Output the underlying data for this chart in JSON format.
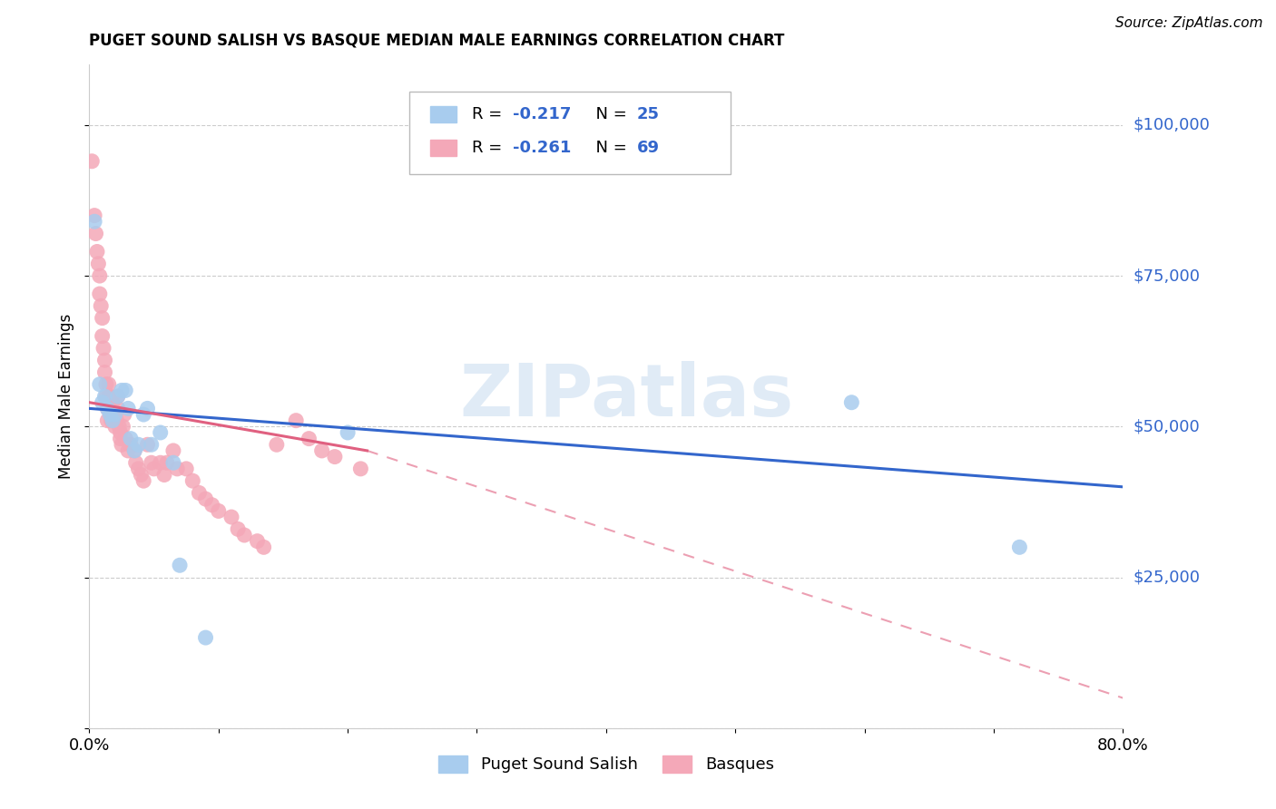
{
  "title": "PUGET SOUND SALISH VS BASQUE MEDIAN MALE EARNINGS CORRELATION CHART",
  "source": "Source: ZipAtlas.com",
  "ylabel": "Median Male Earnings",
  "xlim": [
    0.0,
    0.8
  ],
  "ylim": [
    0,
    110000
  ],
  "legend_blue_label": "Puget Sound Salish",
  "legend_pink_label": "Basques",
  "watermark": "ZIPatlas",
  "blue_color": "#A8CCEE",
  "pink_color": "#F4A8B8",
  "blue_line_color": "#3366CC",
  "pink_line_color": "#E06080",
  "blue_scatter": [
    [
      0.004,
      84000
    ],
    [
      0.008,
      57000
    ],
    [
      0.01,
      54000
    ],
    [
      0.012,
      55000
    ],
    [
      0.014,
      53000
    ],
    [
      0.016,
      52000
    ],
    [
      0.018,
      51000
    ],
    [
      0.02,
      52000
    ],
    [
      0.022,
      55000
    ],
    [
      0.025,
      56000
    ],
    [
      0.028,
      56000
    ],
    [
      0.03,
      53000
    ],
    [
      0.032,
      48000
    ],
    [
      0.035,
      46000
    ],
    [
      0.038,
      47000
    ],
    [
      0.042,
      52000
    ],
    [
      0.045,
      53000
    ],
    [
      0.048,
      47000
    ],
    [
      0.055,
      49000
    ],
    [
      0.065,
      44000
    ],
    [
      0.07,
      27000
    ],
    [
      0.09,
      15000
    ],
    [
      0.2,
      49000
    ],
    [
      0.59,
      54000
    ],
    [
      0.72,
      30000
    ]
  ],
  "pink_scatter": [
    [
      0.002,
      94000
    ],
    [
      0.004,
      85000
    ],
    [
      0.005,
      82000
    ],
    [
      0.006,
      79000
    ],
    [
      0.007,
      77000
    ],
    [
      0.008,
      75000
    ],
    [
      0.008,
      72000
    ],
    [
      0.009,
      70000
    ],
    [
      0.01,
      68000
    ],
    [
      0.01,
      65000
    ],
    [
      0.011,
      63000
    ],
    [
      0.012,
      61000
    ],
    [
      0.012,
      59000
    ],
    [
      0.013,
      57000
    ],
    [
      0.013,
      55000
    ],
    [
      0.014,
      53000
    ],
    [
      0.014,
      51000
    ],
    [
      0.015,
      55000
    ],
    [
      0.015,
      57000
    ],
    [
      0.016,
      55000
    ],
    [
      0.016,
      53000
    ],
    [
      0.017,
      51000
    ],
    [
      0.018,
      52000
    ],
    [
      0.018,
      54000
    ],
    [
      0.019,
      52000
    ],
    [
      0.02,
      50000
    ],
    [
      0.02,
      52000
    ],
    [
      0.021,
      51000
    ],
    [
      0.022,
      53000
    ],
    [
      0.022,
      55000
    ],
    [
      0.023,
      50000
    ],
    [
      0.024,
      49000
    ],
    [
      0.024,
      48000
    ],
    [
      0.025,
      47000
    ],
    [
      0.026,
      50000
    ],
    [
      0.027,
      52000
    ],
    [
      0.028,
      48000
    ],
    [
      0.03,
      46000
    ],
    [
      0.032,
      47000
    ],
    [
      0.035,
      46000
    ],
    [
      0.036,
      44000
    ],
    [
      0.038,
      43000
    ],
    [
      0.04,
      42000
    ],
    [
      0.042,
      41000
    ],
    [
      0.045,
      47000
    ],
    [
      0.048,
      44000
    ],
    [
      0.05,
      43000
    ],
    [
      0.055,
      44000
    ],
    [
      0.058,
      42000
    ],
    [
      0.06,
      44000
    ],
    [
      0.065,
      46000
    ],
    [
      0.068,
      43000
    ],
    [
      0.075,
      43000
    ],
    [
      0.08,
      41000
    ],
    [
      0.085,
      39000
    ],
    [
      0.09,
      38000
    ],
    [
      0.095,
      37000
    ],
    [
      0.1,
      36000
    ],
    [
      0.11,
      35000
    ],
    [
      0.115,
      33000
    ],
    [
      0.12,
      32000
    ],
    [
      0.13,
      31000
    ],
    [
      0.135,
      30000
    ],
    [
      0.145,
      47000
    ],
    [
      0.16,
      51000
    ],
    [
      0.17,
      48000
    ],
    [
      0.18,
      46000
    ],
    [
      0.19,
      45000
    ],
    [
      0.21,
      43000
    ]
  ],
  "blue_line": [
    [
      0.0,
      53000
    ],
    [
      0.8,
      40000
    ]
  ],
  "pink_line_solid": [
    [
      0.0,
      54000
    ],
    [
      0.215,
      46000
    ]
  ],
  "pink_line_dash": [
    [
      0.215,
      46000
    ],
    [
      0.8,
      5000
    ]
  ]
}
